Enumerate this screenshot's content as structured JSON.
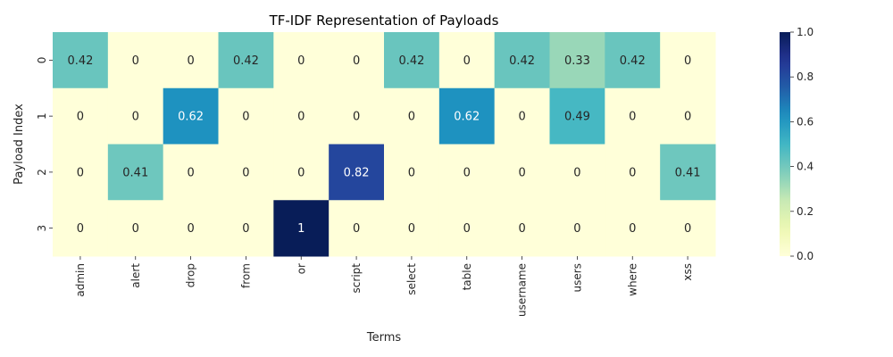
{
  "chart_data": {
    "type": "heatmap",
    "title": "TF-IDF Representation of Payloads",
    "xlabel": "Terms",
    "ylabel": "Payload Index",
    "x_categories": [
      "admin",
      "alert",
      "drop",
      "from",
      "or",
      "script",
      "select",
      "table",
      "username",
      "users",
      "where",
      "xss"
    ],
    "y_categories": [
      "0",
      "1",
      "2",
      "3"
    ],
    "values": [
      [
        0.42,
        0,
        0,
        0.42,
        0,
        0,
        0.42,
        0,
        0.42,
        0.33,
        0.42,
        0
      ],
      [
        0,
        0,
        0.62,
        0,
        0,
        0,
        0,
        0.62,
        0,
        0.49,
        0,
        0
      ],
      [
        0,
        0.41,
        0,
        0,
        0,
        0.82,
        0,
        0,
        0,
        0,
        0,
        0.41
      ],
      [
        0,
        0,
        0,
        0,
        1,
        0,
        0,
        0,
        0,
        0,
        0,
        0
      ]
    ],
    "value_labels": [
      [
        "0.42",
        "0",
        "0",
        "0.42",
        "0",
        "0",
        "0.42",
        "0",
        "0.42",
        "0.33",
        "0.42",
        "0"
      ],
      [
        "0",
        "0",
        "0.62",
        "0",
        "0",
        "0",
        "0",
        "0.62",
        "0",
        "0.49",
        "0",
        "0"
      ],
      [
        "0",
        "0.41",
        "0",
        "0",
        "0",
        "0.82",
        "0",
        "0",
        "0",
        "0",
        "0",
        "0.41"
      ],
      [
        "0",
        "0",
        "0",
        "0",
        "1",
        "0",
        "0",
        "0",
        "0",
        "0",
        "0",
        "0"
      ]
    ],
    "colorbar": {
      "range": [
        0,
        1
      ],
      "ticks": [
        "0.0",
        "0.2",
        "0.4",
        "0.6",
        "0.8",
        "1.0"
      ],
      "colormap": "YlGnBu"
    },
    "grid": false,
    "legend": "colorbar-right"
  }
}
